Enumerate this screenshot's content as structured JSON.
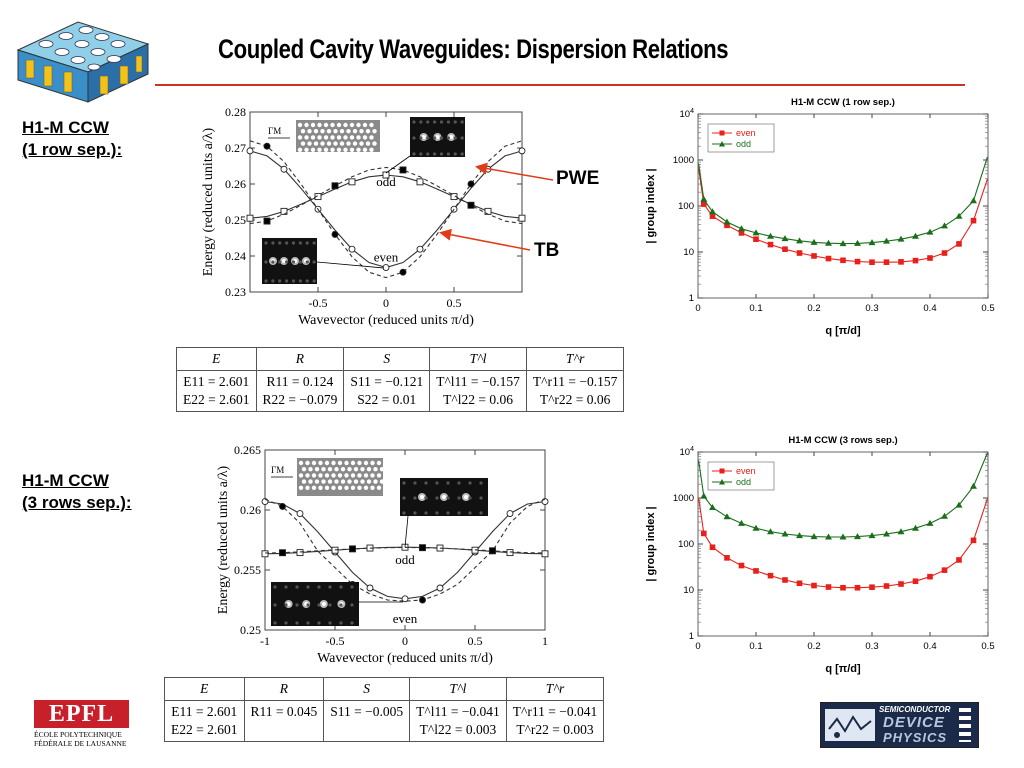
{
  "title": "Coupled Cavity Waveguides: Dispersion Relations",
  "sections": [
    {
      "label_line1": "H1-M CCW",
      "label_line2": "(1 row sep.):"
    },
    {
      "label_line1": "H1-M CCW",
      "label_line2": "(3 rows sep.):"
    }
  ],
  "annotations": {
    "pwe": "PWE",
    "tb": "TB"
  },
  "tables": [
    {
      "headers": [
        "E",
        "R",
        "S",
        "T^l",
        "T^r"
      ],
      "rows": [
        [
          "E11 = 2.601",
          "R11 = 0.124",
          "S11 = −0.121",
          "T^l11 = −0.157",
          "T^r11 = −0.157"
        ],
        [
          "E22 = 2.601",
          "R22 = −0.079",
          "S22 = 0.01",
          "T^l22 = 0.06",
          "T^r22 = 0.06"
        ]
      ]
    },
    {
      "headers": [
        "E",
        "R",
        "S",
        "T^l",
        "T^r"
      ],
      "rows": [
        [
          "E11 = 2.601",
          "R11 = 0.045",
          "S11 = −0.005",
          "T^l11 = −0.041",
          "T^r11 = −0.041"
        ],
        [
          "E22 = 2.601",
          "",
          "",
          "T^l22 = 0.003",
          "T^r22 = 0.003"
        ]
      ]
    }
  ],
  "chart_data": [
    {
      "type": "line",
      "xlabel": "Wavevector (reduced units π/d)",
      "ylabel": "Energy (reduced units a/λ)",
      "xlim": [
        -1,
        1
      ],
      "ylim": [
        0.23,
        0.28
      ],
      "xticks": [
        -0.5,
        0,
        0.5
      ],
      "xtick_labels": [
        "-0.5",
        "0",
        "0.5"
      ],
      "yticks": [
        0.23,
        0.24,
        0.25,
        0.26,
        0.27,
        0.28
      ],
      "ytick_labels": [
        "0.23",
        "0.24",
        "0.25",
        "0.26",
        "0.27",
        "0.28"
      ],
      "labels": {
        "odd": "odd",
        "even": "even",
        "inset": "ΓM"
      },
      "series": [
        {
          "name": "even",
          "style": "solid",
          "marker": "circle-open",
          "x": [
            -1,
            -0.875,
            -0.75,
            -0.625,
            -0.5,
            -0.375,
            -0.25,
            -0.125,
            0,
            0.125,
            0.25,
            0.375,
            0.5,
            0.625,
            0.75,
            0.875,
            1
          ],
          "y": [
            0.2692,
            0.2678,
            0.2641,
            0.2588,
            0.253,
            0.2472,
            0.2419,
            0.2382,
            0.2368,
            0.2382,
            0.2419,
            0.2472,
            0.253,
            0.2588,
            0.2641,
            0.2678,
            0.2692
          ]
        },
        {
          "name": "even",
          "style": "dashed",
          "marker": "circle-filled",
          "x": [
            -1,
            -0.875,
            -0.75,
            -0.625,
            -0.5,
            -0.375,
            -0.25,
            -0.125,
            0,
            0.125,
            0.25,
            0.375,
            0.5,
            0.625,
            0.75,
            0.875,
            1
          ],
          "y": [
            0.272,
            0.2705,
            0.2662,
            0.26,
            0.253,
            0.246,
            0.2398,
            0.2355,
            0.234,
            0.2355,
            0.2398,
            0.246,
            0.253,
            0.26,
            0.2662,
            0.2705,
            0.272
          ]
        },
        {
          "name": "odd",
          "style": "solid",
          "marker": "square-open",
          "x": [
            -1,
            -0.875,
            -0.75,
            -0.625,
            -0.5,
            -0.375,
            -0.25,
            -0.125,
            0,
            0.125,
            0.25,
            0.375,
            0.5,
            0.625,
            0.75,
            0.875,
            1
          ],
          "y": [
            0.2505,
            0.251,
            0.2524,
            0.2544,
            0.2565,
            0.2586,
            0.2606,
            0.262,
            0.2625,
            0.262,
            0.2606,
            0.2586,
            0.2565,
            0.2544,
            0.2524,
            0.251,
            0.2505
          ]
        },
        {
          "name": "odd",
          "style": "dashed",
          "marker": "square-filled",
          "x": [
            -1,
            -0.875,
            -0.75,
            -0.625,
            -0.5,
            -0.375,
            -0.25,
            -0.125,
            0,
            0.125,
            0.25,
            0.375,
            0.5,
            0.625,
            0.75,
            0.875,
            1
          ],
          "y": [
            0.249,
            0.2497,
            0.2516,
            0.2541,
            0.2568,
            0.2595,
            0.262,
            0.2639,
            0.2646,
            0.2639,
            0.262,
            0.2595,
            0.2568,
            0.2541,
            0.2516,
            0.2497,
            0.249
          ]
        }
      ]
    },
    {
      "type": "line",
      "title": "H1-M CCW (1 row sep.)",
      "xlabel": "q [π/d]",
      "ylabel": "| group index |",
      "yscale": "log",
      "xlim": [
        0,
        0.5
      ],
      "ylim": [
        1,
        10000
      ],
      "xticks": [
        0,
        0.1,
        0.2,
        0.3,
        0.4,
        0.5
      ],
      "xtick_labels": [
        "0",
        "0.1",
        "0.2",
        "0.3",
        "0.4",
        "0.5"
      ],
      "ytick_labels": [
        "1",
        "10",
        "100",
        "1000",
        "10^4"
      ],
      "legend": "top-left",
      "series": [
        {
          "name": "even",
          "color": "#e8201c",
          "marker": "square",
          "x": [
            0.01,
            0.025,
            0.05,
            0.075,
            0.1,
            0.125,
            0.15,
            0.175,
            0.2,
            0.225,
            0.25,
            0.275,
            0.3,
            0.325,
            0.35,
            0.375,
            0.4,
            0.425,
            0.45,
            0.475
          ],
          "y": [
            110,
            60,
            38,
            26,
            19,
            14.5,
            11.5,
            9.5,
            8.2,
            7.2,
            6.6,
            6.2,
            6,
            6,
            6.1,
            6.5,
            7.4,
            9.5,
            15,
            48
          ]
        },
        {
          "name": "odd",
          "color": "#1b6e1b",
          "marker": "triangle",
          "x": [
            0.01,
            0.025,
            0.05,
            0.075,
            0.1,
            0.125,
            0.15,
            0.175,
            0.2,
            0.225,
            0.25,
            0.275,
            0.3,
            0.325,
            0.35,
            0.375,
            0.4,
            0.425,
            0.45,
            0.475
          ],
          "y": [
            140,
            75,
            45,
            32,
            26,
            22,
            19.5,
            17.5,
            16.2,
            15.5,
            15.2,
            15.4,
            16,
            17.2,
            19,
            22,
            27,
            37,
            60,
            130
          ]
        }
      ]
    },
    {
      "type": "line",
      "xlabel": "Wavevector (reduced units π/d)",
      "ylabel": "Energy (reduced units a/λ)",
      "xlim": [
        -1,
        1
      ],
      "ylim": [
        0.25,
        0.265
      ],
      "xticks": [
        -1,
        -0.5,
        0,
        0.5,
        1
      ],
      "xtick_labels": [
        "-1",
        "-0.5",
        "0",
        "0.5",
        "1"
      ],
      "yticks": [
        0.25,
        0.255,
        0.26,
        0.265
      ],
      "ytick_labels": [
        "0.25",
        "0.255",
        "0.26",
        "0.265"
      ],
      "labels": {
        "odd": "odd",
        "even": "even",
        "inset": "ΓM"
      },
      "series": [
        {
          "name": "even",
          "style": "solid",
          "marker": "circle-open",
          "x": [
            -1,
            -0.875,
            -0.75,
            -0.625,
            -0.5,
            -0.375,
            -0.25,
            -0.125,
            0,
            0.125,
            0.25,
            0.375,
            0.5,
            0.625,
            0.75,
            0.875,
            1
          ],
          "y": [
            0.2607,
            0.2605,
            0.2597,
            0.2582,
            0.2565,
            0.2548,
            0.2535,
            0.2528,
            0.2526,
            0.2528,
            0.2535,
            0.2548,
            0.2565,
            0.2582,
            0.2597,
            0.2605,
            0.2607
          ]
        },
        {
          "name": "even",
          "style": "dashed",
          "marker": "circle-filled",
          "x": [
            -1,
            -0.875,
            -0.75,
            -0.625,
            -0.5,
            -0.375,
            -0.25,
            -0.125,
            0,
            0.125,
            0.25,
            0.375,
            0.5,
            0.625,
            0.75,
            0.875,
            1
          ],
          "y": [
            0.2609,
            0.2603,
            0.2589,
            0.2566,
            0.2552,
            0.2538,
            0.253,
            0.2525,
            0.2524,
            0.2525,
            0.253,
            0.2538,
            0.2552,
            0.2566,
            0.2589,
            0.2603,
            0.2609
          ]
        },
        {
          "name": "odd",
          "style": "solid",
          "marker": "square-open",
          "x": [
            -1,
            -0.875,
            -0.75,
            -0.625,
            -0.5,
            -0.375,
            -0.25,
            -0.125,
            0,
            0.125,
            0.25,
            0.375,
            0.5,
            0.625,
            0.75,
            0.875,
            1
          ],
          "y": [
            0.25635,
            0.25638,
            0.25645,
            0.25655,
            0.25665,
            0.25675,
            0.25683,
            0.25688,
            0.2569,
            0.25688,
            0.25683,
            0.25675,
            0.25665,
            0.25655,
            0.25645,
            0.25638,
            0.25635
          ]
        },
        {
          "name": "odd",
          "style": "dashed",
          "marker": "square-filled",
          "x": [
            -1,
            -0.875,
            -0.75,
            -0.625,
            -0.5,
            -0.375,
            -0.25,
            -0.125,
            0,
            0.125,
            0.25,
            0.375,
            0.5,
            0.625,
            0.75,
            0.875,
            1
          ],
          "y": [
            0.25642,
            0.25644,
            0.25651,
            0.2566,
            0.25668,
            0.25676,
            0.25682,
            0.25686,
            0.25688,
            0.25686,
            0.25682,
            0.25676,
            0.25668,
            0.2566,
            0.25651,
            0.25644,
            0.25642
          ]
        }
      ]
    },
    {
      "type": "line",
      "title": "H1-M CCW (3 rows sep.)",
      "xlabel": "q [π/d]",
      "ylabel": "| group index |",
      "yscale": "log",
      "xlim": [
        0,
        0.5
      ],
      "ylim": [
        1,
        10000
      ],
      "xticks": [
        0,
        0.1,
        0.2,
        0.3,
        0.4,
        0.5
      ],
      "xtick_labels": [
        "0",
        "0.1",
        "0.2",
        "0.3",
        "0.4",
        "0.5"
      ],
      "ytick_labels": [
        "1",
        "10",
        "100",
        "1000",
        "10^4"
      ],
      "legend": "top-left",
      "series": [
        {
          "name": "even",
          "color": "#e8201c",
          "marker": "square",
          "x": [
            0.01,
            0.025,
            0.05,
            0.075,
            0.1,
            0.125,
            0.15,
            0.175,
            0.2,
            0.225,
            0.25,
            0.275,
            0.3,
            0.325,
            0.35,
            0.375,
            0.4,
            0.425,
            0.45,
            0.475
          ],
          "y": [
            170,
            85,
            50,
            34,
            26,
            20.5,
            16.5,
            14,
            12.5,
            11.6,
            11.2,
            11.2,
            11.5,
            12.2,
            13.5,
            15.5,
            19.5,
            27,
            45,
            120
          ]
        },
        {
          "name": "odd",
          "color": "#1b6e1b",
          "marker": "triangle",
          "x": [
            0.01,
            0.025,
            0.05,
            0.075,
            0.1,
            0.125,
            0.15,
            0.175,
            0.2,
            0.225,
            0.25,
            0.275,
            0.3,
            0.325,
            0.35,
            0.375,
            0.4,
            0.425,
            0.45,
            0.475
          ],
          "y": [
            1100,
            620,
            390,
            280,
            220,
            185,
            165,
            152,
            145,
            142,
            142,
            145,
            152,
            165,
            185,
            220,
            280,
            400,
            700,
            1800
          ]
        }
      ]
    }
  ],
  "logos": {
    "epfl_wordmark": "EPFL",
    "epfl_line1": "ÉCOLE POLYTECHNIQUE",
    "epfl_line2": "FÉDÉRALE DE LAUSANNE",
    "sdp_line1": "SEMICONDUCTOR",
    "sdp_line2": "DEVICE",
    "sdp_line3": "PHYSICS"
  }
}
